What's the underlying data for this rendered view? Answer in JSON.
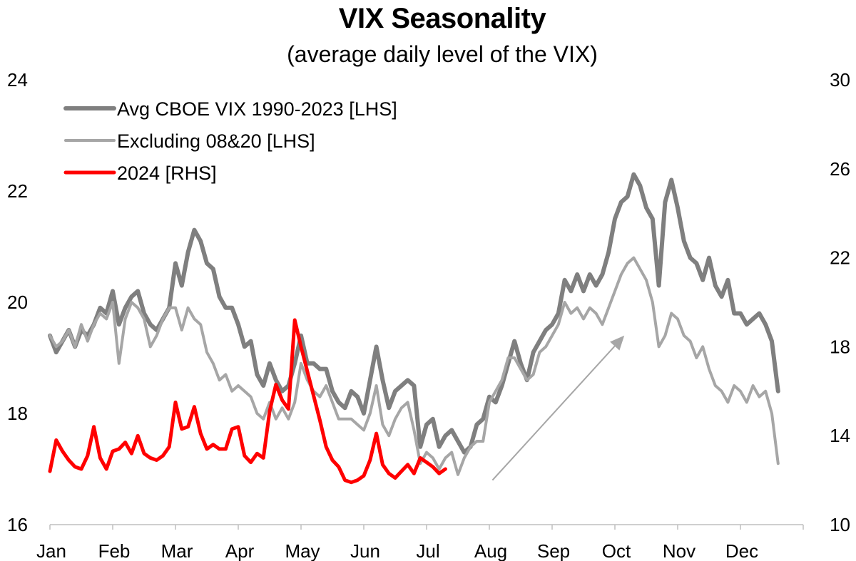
{
  "chart_data": {
    "type": "line",
    "title": "VIX Seasonality",
    "subtitle": "(average daily level of the VIX)",
    "x_categories": [
      "Jan",
      "Feb",
      "Mar",
      "Apr",
      "May",
      "Jun",
      "Jul",
      "Aug",
      "Sep",
      "Oct",
      "Nov",
      "Dec"
    ],
    "left_axis": {
      "ylim": [
        16,
        24
      ],
      "ticks": [
        16,
        18,
        20,
        22,
        24
      ]
    },
    "right_axis": {
      "ylim": [
        10,
        30
      ],
      "ticks": [
        10,
        14,
        18,
        22,
        26,
        30
      ]
    },
    "legend_position": "top-left",
    "grid": false,
    "series": [
      {
        "name": "Avg CBOE VIX 1990-2023 [LHS]",
        "axis": "left",
        "color": "#7f7f7f",
        "points": [
          [
            1.0,
            19.4
          ],
          [
            1.1,
            19.1
          ],
          [
            1.2,
            19.3
          ],
          [
            1.3,
            19.5
          ],
          [
            1.4,
            19.2
          ],
          [
            1.5,
            19.5
          ],
          [
            1.6,
            19.4
          ],
          [
            1.7,
            19.6
          ],
          [
            1.8,
            19.9
          ],
          [
            1.9,
            19.8
          ],
          [
            2.0,
            20.2
          ],
          [
            2.1,
            19.6
          ],
          [
            2.2,
            19.9
          ],
          [
            2.3,
            20.1
          ],
          [
            2.4,
            20.2
          ],
          [
            2.5,
            19.8
          ],
          [
            2.6,
            19.6
          ],
          [
            2.7,
            19.5
          ],
          [
            2.8,
            19.7
          ],
          [
            2.9,
            19.9
          ],
          [
            3.0,
            20.7
          ],
          [
            3.1,
            20.3
          ],
          [
            3.2,
            20.9
          ],
          [
            3.3,
            21.3
          ],
          [
            3.4,
            21.1
          ],
          [
            3.5,
            20.7
          ],
          [
            3.6,
            20.6
          ],
          [
            3.7,
            20.1
          ],
          [
            3.8,
            19.9
          ],
          [
            3.9,
            19.9
          ],
          [
            4.0,
            19.6
          ],
          [
            4.1,
            19.2
          ],
          [
            4.2,
            19.3
          ],
          [
            4.3,
            18.7
          ],
          [
            4.4,
            18.5
          ],
          [
            4.5,
            18.9
          ],
          [
            4.6,
            18.6
          ],
          [
            4.7,
            18.4
          ],
          [
            4.8,
            18.5
          ],
          [
            4.9,
            18.9
          ],
          [
            5.0,
            19.4
          ],
          [
            5.1,
            18.9
          ],
          [
            5.2,
            18.9
          ],
          [
            5.3,
            18.8
          ],
          [
            5.4,
            18.8
          ],
          [
            5.5,
            18.4
          ],
          [
            5.6,
            18.2
          ],
          [
            5.7,
            18.1
          ],
          [
            5.8,
            18.4
          ],
          [
            5.9,
            18.3
          ],
          [
            6.0,
            18.0
          ],
          [
            6.1,
            18.6
          ],
          [
            6.2,
            19.2
          ],
          [
            6.3,
            18.6
          ],
          [
            6.4,
            18.1
          ],
          [
            6.5,
            18.4
          ],
          [
            6.6,
            18.5
          ],
          [
            6.7,
            18.6
          ],
          [
            6.8,
            18.5
          ],
          [
            6.9,
            17.4
          ],
          [
            7.0,
            17.8
          ],
          [
            7.1,
            17.9
          ],
          [
            7.2,
            17.4
          ],
          [
            7.3,
            17.6
          ],
          [
            7.4,
            17.7
          ],
          [
            7.5,
            17.5
          ],
          [
            7.6,
            17.3
          ],
          [
            7.7,
            17.4
          ],
          [
            7.8,
            17.8
          ],
          [
            7.9,
            17.9
          ],
          [
            8.0,
            18.3
          ],
          [
            8.1,
            18.2
          ],
          [
            8.2,
            18.5
          ],
          [
            8.3,
            18.9
          ],
          [
            8.4,
            19.3
          ],
          [
            8.5,
            18.9
          ],
          [
            8.6,
            18.6
          ],
          [
            8.7,
            19.1
          ],
          [
            8.8,
            19.3
          ],
          [
            8.9,
            19.5
          ],
          [
            9.0,
            19.6
          ],
          [
            9.1,
            19.8
          ],
          [
            9.2,
            20.4
          ],
          [
            9.3,
            20.2
          ],
          [
            9.4,
            20.5
          ],
          [
            9.5,
            20.2
          ],
          [
            9.6,
            20.5
          ],
          [
            9.7,
            20.3
          ],
          [
            9.8,
            20.5
          ],
          [
            9.9,
            20.9
          ],
          [
            10.0,
            21.5
          ],
          [
            10.1,
            21.8
          ],
          [
            10.2,
            21.9
          ],
          [
            10.3,
            22.3
          ],
          [
            10.4,
            22.1
          ],
          [
            10.5,
            21.7
          ],
          [
            10.6,
            21.5
          ],
          [
            10.7,
            20.3
          ],
          [
            10.8,
            21.8
          ],
          [
            10.9,
            22.2
          ],
          [
            11.0,
            21.7
          ],
          [
            11.1,
            21.1
          ],
          [
            11.2,
            20.8
          ],
          [
            11.3,
            20.7
          ],
          [
            11.4,
            20.4
          ],
          [
            11.5,
            20.8
          ],
          [
            11.6,
            20.3
          ],
          [
            11.7,
            20.1
          ],
          [
            11.8,
            20.4
          ],
          [
            11.9,
            19.8
          ],
          [
            12.0,
            19.8
          ],
          [
            12.1,
            19.6
          ],
          [
            12.2,
            19.7
          ],
          [
            12.3,
            19.8
          ],
          [
            12.4,
            19.6
          ],
          [
            12.5,
            19.3
          ],
          [
            12.6,
            18.4
          ]
        ]
      },
      {
        "name": "Excluding 08&20 [LHS]",
        "axis": "left",
        "color": "#a6a6a6",
        "points": [
          [
            1.0,
            19.4
          ],
          [
            1.1,
            19.2
          ],
          [
            1.2,
            19.3
          ],
          [
            1.3,
            19.5
          ],
          [
            1.4,
            19.2
          ],
          [
            1.5,
            19.6
          ],
          [
            1.6,
            19.3
          ],
          [
            1.7,
            19.6
          ],
          [
            1.8,
            19.8
          ],
          [
            1.9,
            19.7
          ],
          [
            2.0,
            20.0
          ],
          [
            2.1,
            18.9
          ],
          [
            2.2,
            19.7
          ],
          [
            2.3,
            20.0
          ],
          [
            2.4,
            19.9
          ],
          [
            2.5,
            19.7
          ],
          [
            2.6,
            19.2
          ],
          [
            2.7,
            19.4
          ],
          [
            2.8,
            19.7
          ],
          [
            2.9,
            19.9
          ],
          [
            3.0,
            19.9
          ],
          [
            3.1,
            19.5
          ],
          [
            3.2,
            19.9
          ],
          [
            3.3,
            19.7
          ],
          [
            3.4,
            19.6
          ],
          [
            3.5,
            19.1
          ],
          [
            3.6,
            18.9
          ],
          [
            3.7,
            18.6
          ],
          [
            3.8,
            18.7
          ],
          [
            3.9,
            18.4
          ],
          [
            4.0,
            18.5
          ],
          [
            4.1,
            18.4
          ],
          [
            4.2,
            18.3
          ],
          [
            4.3,
            18.0
          ],
          [
            4.4,
            17.9
          ],
          [
            4.5,
            18.2
          ],
          [
            4.6,
            17.9
          ],
          [
            4.7,
            18.1
          ],
          [
            4.8,
            17.9
          ],
          [
            4.9,
            18.2
          ],
          [
            5.0,
            18.9
          ],
          [
            5.1,
            18.6
          ],
          [
            5.2,
            18.4
          ],
          [
            5.3,
            18.3
          ],
          [
            5.4,
            18.5
          ],
          [
            5.5,
            18.2
          ],
          [
            5.6,
            17.9
          ],
          [
            5.7,
            17.9
          ],
          [
            5.8,
            17.9
          ],
          [
            5.9,
            17.8
          ],
          [
            6.0,
            17.7
          ],
          [
            6.1,
            18.0
          ],
          [
            6.2,
            18.5
          ],
          [
            6.3,
            17.8
          ],
          [
            6.4,
            17.6
          ],
          [
            6.5,
            17.9
          ],
          [
            6.6,
            18.1
          ],
          [
            6.7,
            18.2
          ],
          [
            6.8,
            17.7
          ],
          [
            6.9,
            17.1
          ],
          [
            7.0,
            17.3
          ],
          [
            7.1,
            17.2
          ],
          [
            7.2,
            17.0
          ],
          [
            7.3,
            17.2
          ],
          [
            7.4,
            17.3
          ],
          [
            7.5,
            16.9
          ],
          [
            7.6,
            17.2
          ],
          [
            7.7,
            17.4
          ],
          [
            7.8,
            17.5
          ],
          [
            7.9,
            17.5
          ],
          [
            8.0,
            18.2
          ],
          [
            8.1,
            18.4
          ],
          [
            8.2,
            18.6
          ],
          [
            8.3,
            19.0
          ],
          [
            8.4,
            19.0
          ],
          [
            8.5,
            18.8
          ],
          [
            8.6,
            18.6
          ],
          [
            8.7,
            18.7
          ],
          [
            8.8,
            19.1
          ],
          [
            8.9,
            19.2
          ],
          [
            9.0,
            19.4
          ],
          [
            9.1,
            19.6
          ],
          [
            9.2,
            20.0
          ],
          [
            9.3,
            19.8
          ],
          [
            9.4,
            19.9
          ],
          [
            9.5,
            19.7
          ],
          [
            9.6,
            19.9
          ],
          [
            9.7,
            19.8
          ],
          [
            9.8,
            19.6
          ],
          [
            9.9,
            19.9
          ],
          [
            10.0,
            20.2
          ],
          [
            10.1,
            20.5
          ],
          [
            10.2,
            20.7
          ],
          [
            10.3,
            20.8
          ],
          [
            10.4,
            20.6
          ],
          [
            10.5,
            20.4
          ],
          [
            10.6,
            20.0
          ],
          [
            10.7,
            19.2
          ],
          [
            10.8,
            19.4
          ],
          [
            10.9,
            19.8
          ],
          [
            11.0,
            19.7
          ],
          [
            11.1,
            19.4
          ],
          [
            11.2,
            19.3
          ],
          [
            11.3,
            19.0
          ],
          [
            11.4,
            19.2
          ],
          [
            11.5,
            18.8
          ],
          [
            11.6,
            18.5
          ],
          [
            11.7,
            18.4
          ],
          [
            11.8,
            18.2
          ],
          [
            11.9,
            18.5
          ],
          [
            12.0,
            18.4
          ],
          [
            12.1,
            18.2
          ],
          [
            12.2,
            18.5
          ],
          [
            12.3,
            18.3
          ],
          [
            12.4,
            18.4
          ],
          [
            12.5,
            18.0
          ],
          [
            12.6,
            17.1
          ]
        ]
      },
      {
        "name": "2024 [RHS]",
        "axis": "right",
        "color": "#ff0000",
        "points": [
          [
            1.0,
            12.4
          ],
          [
            1.1,
            13.8
          ],
          [
            1.2,
            13.3
          ],
          [
            1.3,
            12.9
          ],
          [
            1.4,
            12.6
          ],
          [
            1.5,
            12.5
          ],
          [
            1.6,
            13.1
          ],
          [
            1.7,
            14.4
          ],
          [
            1.8,
            13.0
          ],
          [
            1.9,
            12.5
          ],
          [
            2.0,
            13.3
          ],
          [
            2.1,
            13.4
          ],
          [
            2.2,
            13.7
          ],
          [
            2.3,
            13.2
          ],
          [
            2.4,
            14.0
          ],
          [
            2.5,
            13.2
          ],
          [
            2.6,
            13.0
          ],
          [
            2.7,
            12.9
          ],
          [
            2.8,
            13.1
          ],
          [
            2.9,
            13.5
          ],
          [
            3.0,
            15.5
          ],
          [
            3.1,
            14.3
          ],
          [
            3.2,
            14.4
          ],
          [
            3.3,
            15.3
          ],
          [
            3.4,
            14.1
          ],
          [
            3.5,
            13.4
          ],
          [
            3.6,
            13.6
          ],
          [
            3.7,
            13.4
          ],
          [
            3.8,
            13.4
          ],
          [
            3.9,
            14.3
          ],
          [
            4.0,
            14.4
          ],
          [
            4.1,
            13.1
          ],
          [
            4.2,
            12.8
          ],
          [
            4.3,
            13.2
          ],
          [
            4.4,
            13.0
          ],
          [
            4.5,
            15.1
          ],
          [
            4.6,
            16.3
          ],
          [
            4.7,
            15.6
          ],
          [
            4.8,
            15.2
          ],
          [
            4.9,
            19.2
          ],
          [
            5.0,
            18.0
          ],
          [
            5.1,
            16.9
          ],
          [
            5.2,
            15.8
          ],
          [
            5.3,
            14.7
          ],
          [
            5.4,
            13.5
          ],
          [
            5.5,
            12.9
          ],
          [
            5.6,
            12.6
          ],
          [
            5.7,
            12.0
          ],
          [
            5.8,
            11.9
          ],
          [
            5.9,
            12.0
          ],
          [
            6.0,
            12.2
          ],
          [
            6.1,
            12.9
          ],
          [
            6.2,
            14.1
          ],
          [
            6.3,
            12.7
          ],
          [
            6.4,
            12.3
          ],
          [
            6.5,
            12.1
          ],
          [
            6.6,
            12.4
          ],
          [
            6.7,
            12.7
          ],
          [
            6.8,
            12.3
          ],
          [
            6.9,
            13.0
          ],
          [
            7.0,
            12.8
          ],
          [
            7.1,
            12.6
          ],
          [
            7.2,
            12.3
          ],
          [
            7.3,
            12.5
          ]
        ]
      }
    ],
    "annotation": {
      "type": "arrow",
      "color": "#a6a6a6",
      "from_x": 8.05,
      "to_x": 10.15,
      "from_y_left": 16.8,
      "to_y_left": 19.4
    }
  }
}
